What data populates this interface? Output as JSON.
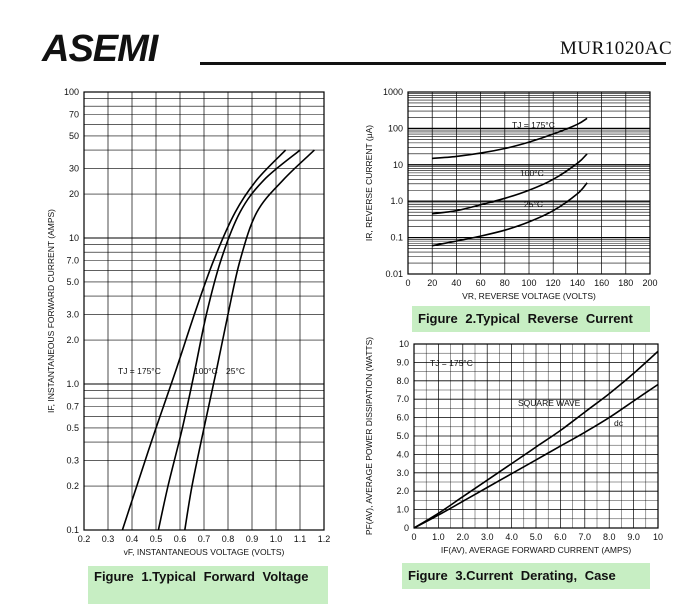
{
  "header": {
    "brand": "ASEMI",
    "part_number": "MUR1020AC",
    "brand_color": "#1f3f8f"
  },
  "chart_data": [
    {
      "type": "line",
      "caption": "Figure 1.Typical Forward Voltage",
      "xlabel": "vF, INSTANTANEOUS VOLTAGE (VOLTS)",
      "ylabel": "IF, INSTANTANEOUS FORWARD CURRENT (AMPS)",
      "xscale": "linear",
      "yscale": "log",
      "xlim": [
        0.2,
        1.2
      ],
      "ylim": [
        0.1,
        100
      ],
      "xticks": [
        "0.2",
        "0.3",
        "0.4",
        "0.5",
        "0.6",
        "0.7",
        "0.8",
        "0.9",
        "1.0",
        "1.1",
        "1.2"
      ],
      "yticks": [
        {
          "v": 0.1,
          "label": "0.1"
        },
        {
          "v": 0.2,
          "label": "0.2"
        },
        {
          "v": 0.3,
          "label": "0.3"
        },
        {
          "v": 0.5,
          "label": "0.5"
        },
        {
          "v": 0.7,
          "label": "0.7"
        },
        {
          "v": 1,
          "label": "1.0"
        },
        {
          "v": 2,
          "label": "2.0"
        },
        {
          "v": 3,
          "label": "3.0"
        },
        {
          "v": 5,
          "label": "5.0"
        },
        {
          "v": 7,
          "label": "7.0"
        },
        {
          "v": 10,
          "label": "10"
        },
        {
          "v": 20,
          "label": "20"
        },
        {
          "v": 30,
          "label": "30"
        },
        {
          "v": 50,
          "label": "50"
        },
        {
          "v": 70,
          "label": "70"
        },
        {
          "v": 100,
          "label": "100"
        }
      ],
      "grid": true,
      "series": [
        {
          "name": "TJ = 175°C",
          "x": [
            0.36,
            0.42,
            0.5,
            0.58,
            0.66,
            0.74,
            0.83,
            0.92,
            1.04
          ],
          "y": [
            0.1,
            0.2,
            0.5,
            1.2,
            3,
            7,
            15,
            25,
            40
          ]
        },
        {
          "name": "100°C",
          "x": [
            0.51,
            0.55,
            0.61,
            0.66,
            0.71,
            0.77,
            0.85,
            0.95,
            1.1
          ],
          "y": [
            0.1,
            0.2,
            0.5,
            1.2,
            3,
            7,
            15,
            25,
            40
          ]
        },
        {
          "name": "25°C",
          "x": [
            0.62,
            0.65,
            0.7,
            0.75,
            0.8,
            0.85,
            0.92,
            1.03,
            1.16
          ],
          "y": [
            0.1,
            0.2,
            0.5,
            1.2,
            3,
            7,
            15,
            25,
            40
          ]
        }
      ]
    },
    {
      "type": "line",
      "caption": "Figure 2.Typical Reverse Current",
      "xlabel": "VR, REVERSE VOLTAGE (VOLTS)",
      "ylabel": "IR, REVERSE CURRENT (μA)",
      "xscale": "linear",
      "yscale": "log",
      "xlim": [
        0,
        200
      ],
      "ylim": [
        0.01,
        1000
      ],
      "xticks": [
        "0",
        "20",
        "40",
        "60",
        "80",
        "100",
        "120",
        "140",
        "160",
        "180",
        "200"
      ],
      "yticks": [
        {
          "v": 0.01,
          "label": "0.01"
        },
        {
          "v": 0.1,
          "label": "0.1"
        },
        {
          "v": 1,
          "label": "1.0"
        },
        {
          "v": 10,
          "label": "10"
        },
        {
          "v": 100,
          "label": "100"
        },
        {
          "v": 1000,
          "label": "1000"
        }
      ],
      "grid": true,
      "series": [
        {
          "name": "TJ = 175°C",
          "x": [
            20,
            40,
            60,
            80,
            100,
            120,
            140,
            148
          ],
          "y": [
            15,
            17,
            21,
            28,
            42,
            70,
            130,
            190
          ]
        },
        {
          "name": "100°C",
          "x": [
            20,
            40,
            60,
            80,
            100,
            120,
            140,
            148
          ],
          "y": [
            0.45,
            0.55,
            0.8,
            1.2,
            2,
            4,
            11,
            20
          ]
        },
        {
          "name": "25°C",
          "x": [
            20,
            40,
            60,
            80,
            100,
            120,
            140,
            148
          ],
          "y": [
            0.06,
            0.08,
            0.11,
            0.16,
            0.27,
            0.55,
            1.6,
            3.2
          ]
        }
      ]
    },
    {
      "type": "line",
      "caption": "Figure 3.Current Derating, Case",
      "xlabel": "IF(AV), AVERAGE FORWARD CURRENT (AMPS)",
      "ylabel": "PF(AV), AVERAGE POWER DISSIPATION (WATTS)",
      "xscale": "linear",
      "yscale": "linear",
      "xlim": [
        0,
        10
      ],
      "ylim": [
        0,
        10
      ],
      "xticks": [
        "0",
        "1.0",
        "2.0",
        "3.0",
        "4.0",
        "5.0",
        "6.0",
        "7.0",
        "8.0",
        "9.0",
        "10"
      ],
      "yticks": [
        {
          "v": 0,
          "label": "0"
        },
        {
          "v": 1,
          "label": "1.0"
        },
        {
          "v": 2,
          "label": "2.0"
        },
        {
          "v": 3,
          "label": "3.0"
        },
        {
          "v": 4,
          "label": "4.0"
        },
        {
          "v": 5,
          "label": "5.0"
        },
        {
          "v": 6,
          "label": "6.0"
        },
        {
          "v": 7,
          "label": "7.0"
        },
        {
          "v": 8,
          "label": "8.0"
        },
        {
          "v": 9,
          "label": "9.0"
        },
        {
          "v": 10,
          "label": "10"
        }
      ],
      "grid": true,
      "annotations": [
        "TJ = 175°C"
      ],
      "series": [
        {
          "name": "SQUARE WAVE",
          "x": [
            0,
            1,
            2,
            3,
            4,
            5,
            6,
            7,
            8,
            9,
            10
          ],
          "y": [
            0,
            0.8,
            1.7,
            2.6,
            3.5,
            4.4,
            5.3,
            6.3,
            7.3,
            8.4,
            9.6
          ]
        },
        {
          "name": "dc",
          "x": [
            0,
            1,
            2,
            3,
            4,
            5,
            6,
            7,
            8,
            9,
            10
          ],
          "y": [
            0,
            0.7,
            1.45,
            2.2,
            2.95,
            3.7,
            4.45,
            5.2,
            6.0,
            6.9,
            7.8
          ]
        }
      ]
    }
  ]
}
